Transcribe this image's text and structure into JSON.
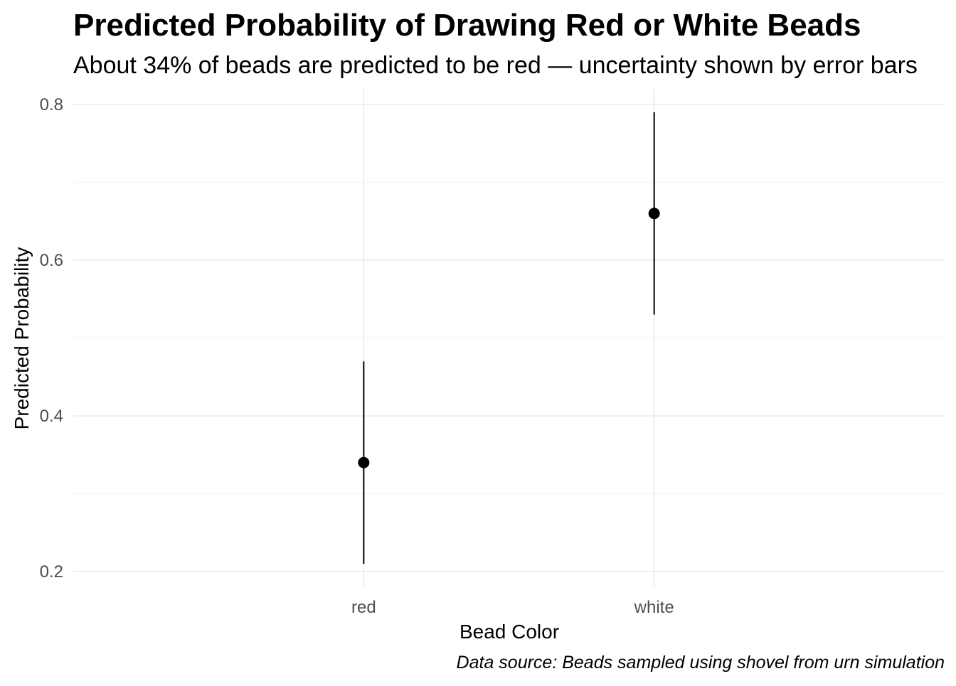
{
  "chart_data": {
    "type": "scatter",
    "title": "Predicted Probability of Drawing Red or White Beads",
    "subtitle": "About 34% of beads are predicted to be red — uncertainty shown by error bars",
    "xlabel": "Bead Color",
    "ylabel": "Predicted Probability",
    "caption": "Data source: Beads sampled using shovel from urn simulation",
    "categories": [
      "red",
      "white"
    ],
    "series": [
      {
        "values": [
          0.34,
          0.66
        ],
        "lower": [
          0.21,
          0.53
        ],
        "upper": [
          0.47,
          0.79
        ]
      }
    ],
    "ylim": [
      0.18,
      0.82
    ],
    "y_ticks": [
      "0.2",
      "0.4",
      "0.6",
      "0.8"
    ],
    "y_tick_values": [
      0.2,
      0.4,
      0.6,
      0.8
    ],
    "grid": true,
    "legend": "none",
    "colors": {
      "point": "#000000",
      "errorbar": "#000000",
      "grid_major": "#ebebeb",
      "grid_minor": "#f4f4f4",
      "tick_text": "#4d4d4d"
    }
  }
}
